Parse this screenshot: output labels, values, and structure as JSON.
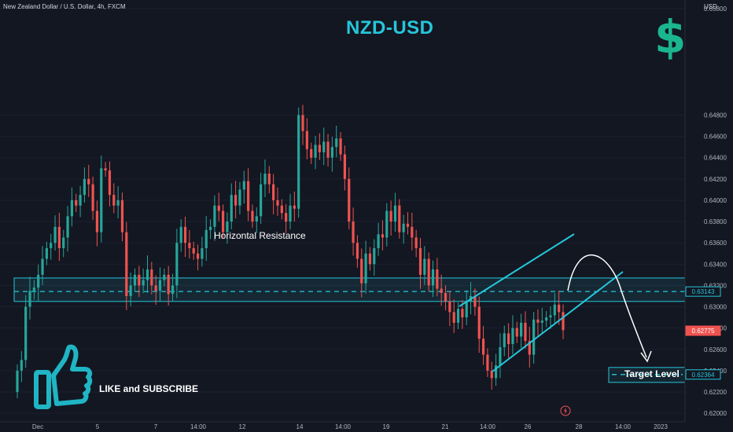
{
  "header": {
    "symbol_line": "New Zealand Dollar / U.S. Dollar, 4h, FXCM"
  },
  "overlay": {
    "title": "NZD-USD",
    "dollar_glyph": "$",
    "like_text": "LIKE and SUBSCRIBE",
    "target_text": "Target Level",
    "resistance_text": "Horizontal Resistance"
  },
  "colors": {
    "background": "#131722",
    "up": "#26a69a",
    "down": "#ef5350",
    "accent": "#26c6da",
    "brand_green": "#1bb58f"
  },
  "chart_data": {
    "type": "candlestick",
    "title": "NZD-USD",
    "ylabel": "USD",
    "ylim": [
      0.6192,
      0.6588
    ],
    "y_ticks": [
      "0.65800",
      "0.64800",
      "0.64600",
      "0.64400",
      "0.64200",
      "0.64000",
      "0.63800",
      "0.63600",
      "0.63400",
      "0.63200",
      "0.63000",
      "0.62800",
      "0.62600",
      "0.62400",
      "0.62200",
      "0.62000"
    ],
    "x_ticks": [
      "Dec",
      "5",
      "7",
      "14:00",
      "12",
      "14",
      "14:00",
      "19",
      "21",
      "14:00",
      "26",
      "28",
      "14:00",
      "2023"
    ],
    "price_labels": [
      {
        "label": "0.63143",
        "value": 0.63143
      },
      {
        "label": "0.62775",
        "value": 0.62775
      },
      {
        "label": "0.62364",
        "value": 0.62364
      }
    ],
    "resistance_zone": [
      0.6305,
      0.6327
    ],
    "resistance_level": 0.63143,
    "target_zone": [
      0.6229,
      0.6243
    ],
    "target_level": 0.62364,
    "candles": [
      [
        0.622,
        0.624
      ],
      [
        0.624,
        0.625
      ],
      [
        0.625,
        0.63
      ],
      [
        0.63,
        0.6315
      ],
      [
        0.6315,
        0.6318
      ],
      [
        0.6318,
        0.633
      ],
      [
        0.633,
        0.6345
      ],
      [
        0.6345,
        0.6355
      ],
      [
        0.6355,
        0.636
      ],
      [
        0.636,
        0.6375
      ],
      [
        0.6375,
        0.6355
      ],
      [
        0.6355,
        0.6365
      ],
      [
        0.6365,
        0.6385
      ],
      [
        0.6385,
        0.64
      ],
      [
        0.64,
        0.6395
      ],
      [
        0.6395,
        0.6405
      ],
      [
        0.6405,
        0.642
      ],
      [
        0.642,
        0.6415
      ],
      [
        0.6415,
        0.639
      ],
      [
        0.639,
        0.637
      ],
      [
        0.637,
        0.643
      ],
      [
        0.643,
        0.6428
      ],
      [
        0.6428,
        0.6405
      ],
      [
        0.6405,
        0.6395
      ],
      [
        0.6395,
        0.64
      ],
      [
        0.64,
        0.637
      ],
      [
        0.637,
        0.631
      ],
      [
        0.631,
        0.632
      ],
      [
        0.632,
        0.633
      ],
      [
        0.633,
        0.632
      ],
      [
        0.632,
        0.6325
      ],
      [
        0.6325,
        0.6335
      ],
      [
        0.6335,
        0.632
      ],
      [
        0.632,
        0.6315
      ],
      [
        0.6315,
        0.6325
      ],
      [
        0.6325,
        0.633
      ],
      [
        0.633,
        0.6312
      ],
      [
        0.6312,
        0.632
      ],
      [
        0.632,
        0.636
      ],
      [
        0.636,
        0.6375
      ],
      [
        0.6375,
        0.636
      ],
      [
        0.636,
        0.6355
      ],
      [
        0.6355,
        0.635
      ],
      [
        0.635,
        0.6345
      ],
      [
        0.6345,
        0.6355
      ],
      [
        0.6355,
        0.6372
      ],
      [
        0.6372,
        0.6375
      ],
      [
        0.6375,
        0.6395
      ],
      [
        0.6395,
        0.639
      ],
      [
        0.639,
        0.637
      ],
      [
        0.637,
        0.638
      ],
      [
        0.638,
        0.6405
      ],
      [
        0.6405,
        0.6395
      ],
      [
        0.6395,
        0.641
      ],
      [
        0.641,
        0.6418
      ],
      [
        0.6418,
        0.639
      ],
      [
        0.639,
        0.638
      ],
      [
        0.638,
        0.6385
      ],
      [
        0.6385,
        0.6415
      ],
      [
        0.6415,
        0.6425
      ],
      [
        0.6425,
        0.6415
      ],
      [
        0.6415,
        0.64
      ],
      [
        0.64,
        0.6395
      ],
      [
        0.6395,
        0.6388
      ],
      [
        0.6388,
        0.638
      ],
      [
        0.638,
        0.6395
      ],
      [
        0.6395,
        0.6392
      ],
      [
        0.6392,
        0.648
      ],
      [
        0.648,
        0.6465
      ],
      [
        0.6465,
        0.6448
      ],
      [
        0.6448,
        0.644
      ],
      [
        0.644,
        0.6452
      ],
      [
        0.6452,
        0.6445
      ],
      [
        0.6445,
        0.6455
      ],
      [
        0.6455,
        0.644
      ],
      [
        0.644,
        0.645
      ],
      [
        0.645,
        0.6458
      ],
      [
        0.6458,
        0.6443
      ],
      [
        0.6443,
        0.642
      ],
      [
        0.642,
        0.638
      ],
      [
        0.638,
        0.636
      ],
      [
        0.636,
        0.6345
      ],
      [
        0.6345,
        0.6322
      ],
      [
        0.6322,
        0.635
      ],
      [
        0.635,
        0.634
      ],
      [
        0.634,
        0.6355
      ],
      [
        0.6355,
        0.6368
      ],
      [
        0.6368,
        0.6365
      ],
      [
        0.6365,
        0.639
      ],
      [
        0.639,
        0.638
      ],
      [
        0.638,
        0.6395
      ],
      [
        0.6395,
        0.637
      ],
      [
        0.637,
        0.6378
      ],
      [
        0.6378,
        0.6375
      ],
      [
        0.6375,
        0.6365
      ],
      [
        0.6365,
        0.6355
      ],
      [
        0.6355,
        0.633
      ],
      [
        0.633,
        0.6345
      ],
      [
        0.6345,
        0.632
      ],
      [
        0.632,
        0.6335
      ],
      [
        0.6335,
        0.6317
      ],
      [
        0.6317,
        0.6313
      ],
      [
        0.6313,
        0.6305
      ],
      [
        0.6305,
        0.6295
      ],
      [
        0.6295,
        0.6285
      ],
      [
        0.6285,
        0.6298
      ],
      [
        0.6298,
        0.629
      ],
      [
        0.629,
        0.6305
      ],
      [
        0.6305,
        0.631
      ],
      [
        0.631,
        0.63
      ],
      [
        0.63,
        0.627
      ],
      [
        0.627,
        0.6255
      ],
      [
        0.6255,
        0.624
      ],
      [
        0.624,
        0.6233
      ],
      [
        0.6233,
        0.6245
      ],
      [
        0.6245,
        0.6262
      ],
      [
        0.6262,
        0.6275
      ],
      [
        0.6275,
        0.6265
      ],
      [
        0.6265,
        0.628
      ],
      [
        0.628,
        0.6272
      ],
      [
        0.6272,
        0.6285
      ],
      [
        0.6285,
        0.6268
      ],
      [
        0.6268,
        0.6255
      ],
      [
        0.6255,
        0.6288
      ],
      [
        0.6288,
        0.6285
      ],
      [
        0.6285,
        0.6287
      ],
      [
        0.6287,
        0.629
      ],
      [
        0.629,
        0.6292
      ],
      [
        0.6292,
        0.6302
      ],
      [
        0.6302,
        0.6295
      ],
      [
        0.6295,
        0.6278
      ]
    ]
  }
}
